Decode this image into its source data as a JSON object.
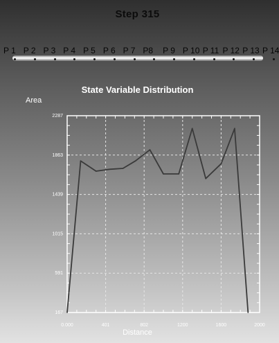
{
  "header": {
    "step_label": "Step  315"
  },
  "probes": {
    "labels": [
      "P 1",
      "P 2",
      "P 3",
      "P 4",
      "P 5",
      "P 6",
      "P 7",
      "P8",
      "P 9",
      "P 10",
      "P 11",
      "P 12",
      "P 13",
      "P 14"
    ]
  },
  "chart": {
    "title": "State Variable Distribution",
    "ylabel": "Area",
    "xlabel": "Distance"
  },
  "chart_data": {
    "type": "line",
    "title": "State Variable Distribution",
    "xlabel": "Distance",
    "ylabel": "Area",
    "x_tick_labels": [
      "0.000",
      "401",
      "802",
      "1200",
      "1600",
      "2000"
    ],
    "y_tick_labels": [
      "2287",
      "1863",
      "1439",
      "1015",
      "591",
      "167"
    ],
    "xlim": [
      0,
      2000
    ],
    "ylim": [
      167,
      2287
    ],
    "grid": true,
    "series": [
      {
        "x": [
          0,
          140,
          300,
          440,
          580,
          710,
          860,
          1000,
          1160,
          1300,
          1440,
          1600,
          1740,
          1880
        ],
        "y": [
          167,
          1800,
          1690,
          1710,
          1720,
          1800,
          1920,
          1660,
          1660,
          2150,
          1610,
          1770,
          2150,
          167
        ]
      }
    ]
  }
}
